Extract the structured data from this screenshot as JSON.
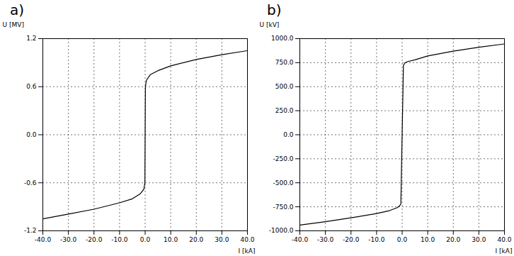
{
  "chart_data": [
    {
      "type": "line",
      "title": "a)",
      "xlabel": "I [kA]",
      "ylabel": "U [MV]",
      "color": "#000000",
      "grid": true,
      "x": [
        -40,
        -30,
        -20,
        -10,
        -5,
        -2,
        -0.5,
        -0.1,
        0,
        0.1,
        0.5,
        2,
        5,
        10,
        20,
        30,
        40
      ],
      "values": [
        -1.05,
        -0.99,
        -0.93,
        -0.85,
        -0.8,
        -0.74,
        -0.68,
        -0.6,
        0,
        0.6,
        0.68,
        0.75,
        0.8,
        0.86,
        0.94,
        1.0,
        1.05
      ],
      "xlim": [
        -40,
        40
      ],
      "ylim": [
        -1.2,
        1.2
      ],
      "xticks": [
        {
          "value": -40,
          "label": "-40.0"
        },
        {
          "value": -30,
          "label": "-30.0"
        },
        {
          "value": -20,
          "label": "-20.0"
        },
        {
          "value": -10,
          "label": "-10.0"
        },
        {
          "value": 0,
          "label": "0.0"
        },
        {
          "value": 10,
          "label": "10.0"
        },
        {
          "value": 20,
          "label": "20.0"
        },
        {
          "value": 30,
          "label": "30.0"
        },
        {
          "value": 40,
          "label": "40.0"
        }
      ],
      "yticks": [
        -1.2,
        -0.6,
        {
          "value": 0,
          "label": "0.0"
        },
        0.6,
        1.2
      ]
    },
    {
      "type": "line",
      "title": "b)",
      "xlabel": "I [kA]",
      "ylabel": "U [kV]",
      "color": "#000000",
      "grid": true,
      "x": [
        -40,
        -30,
        -20,
        -10,
        -5,
        -2,
        -1,
        -0.5,
        0,
        0.5,
        1,
        2,
        5,
        10,
        20,
        30,
        40
      ],
      "values": [
        -940,
        -905,
        -865,
        -820,
        -790,
        -760,
        -740,
        -720,
        0,
        720,
        745,
        760,
        780,
        820,
        870,
        910,
        945
      ],
      "xlim": [
        -40,
        40
      ],
      "ylim": [
        -1000,
        1000
      ],
      "xticks": [
        {
          "value": -40,
          "label": "-40.0"
        },
        {
          "value": -30,
          "label": "-30.0"
        },
        {
          "value": -20,
          "label": "-20.0"
        },
        {
          "value": -10,
          "label": "-10.0"
        },
        {
          "value": 0,
          "label": "0.0"
        },
        {
          "value": 10,
          "label": "10.0"
        },
        {
          "value": 20,
          "label": "20.0"
        },
        {
          "value": 30,
          "label": "30.0"
        },
        {
          "value": 40,
          "label": "40.0"
        }
      ],
      "yticks": [
        {
          "value": -1000,
          "label": "-1000.0"
        },
        {
          "value": -750,
          "label": "-750.0"
        },
        {
          "value": -500,
          "label": "-500.0"
        },
        {
          "value": -250,
          "label": "-250.0"
        },
        {
          "value": 0,
          "label": "0.0"
        },
        {
          "value": 250,
          "label": "250.0"
        },
        {
          "value": 500,
          "label": "500.0"
        },
        {
          "value": 750,
          "label": "750.0"
        },
        {
          "value": 1000,
          "label": "1000.0"
        }
      ]
    }
  ]
}
